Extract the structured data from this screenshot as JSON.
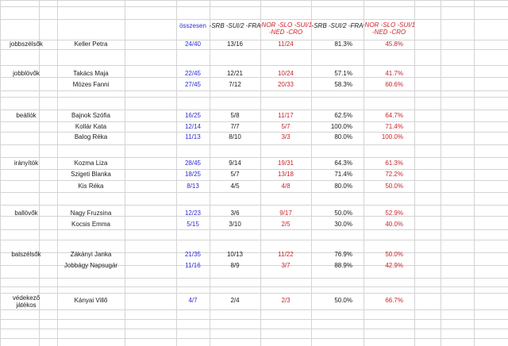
{
  "headers": {
    "total": "összesen",
    "group_a": [
      "-SRB -SUI/2 -FRA"
    ],
    "group_b": [
      "-NOR -SLO -SUI/1",
      "-NED -CRO"
    ],
    "pct_a": "-SRB -SUI/2 -FRA",
    "pct_b": [
      "-NOR -SLO -SUI/1",
      "-NED -CRO"
    ]
  },
  "positions": [
    {
      "label": [
        "jobbszélsők"
      ],
      "players": [
        {
          "name": "Keller Petra",
          "total": "24/40",
          "a": "13/16",
          "b": "11/24",
          "pa": "81.3%",
          "pb": "45.8%"
        }
      ]
    },
    {
      "label": [
        "jobblövők"
      ],
      "players": [
        {
          "name": "Takács Maja",
          "total": "22/45",
          "a": "12/21",
          "b": "10/24",
          "pa": "57.1%",
          "pb": "41.7%"
        },
        {
          "name": "Mózes Fanni",
          "total": "27/45",
          "a": "7/12",
          "b": "20/33",
          "pa": "58.3%",
          "pb": "60.6%"
        }
      ]
    },
    {
      "label": [
        "beállók"
      ],
      "players": [
        {
          "name": "Bajnok Szófia",
          "total": "16/25",
          "a": "5/8",
          "b": "11/17",
          "pa": "62.5%",
          "pb": "64.7%"
        },
        {
          "name": "Kollár Kata",
          "total": "12/14",
          "a": "7/7",
          "b": "5/7",
          "pa": "100.0%",
          "pb": "71.4%"
        },
        {
          "name": "Balog Réka",
          "total": "11/13",
          "a": "8/10",
          "b": "3/3",
          "pa": "80.0%",
          "pb": "100.0%"
        }
      ]
    },
    {
      "label": [
        "irányítók"
      ],
      "players": [
        {
          "name": "Kozma Liza",
          "total": "28/45",
          "a": "9/14",
          "b": "19/31",
          "pa": "64.3%",
          "pb": "61.3%"
        },
        {
          "name": "Szigeti Blanka",
          "total": "18/25",
          "a": "5/7",
          "b": "13/18",
          "pa": "71.4%",
          "pb": "72.2%"
        },
        {
          "name": "Kis Réka",
          "total": "8/13",
          "a": "4/5",
          "b": "4/8",
          "pa": "80.0%",
          "pb": "50.0%"
        }
      ]
    },
    {
      "label": [
        "ballövők"
      ],
      "players": [
        {
          "name": "Nagy Fruzsina",
          "total": "12/23",
          "a": "3/6",
          "b": "9/17",
          "pa": "50.0%",
          "pb": "52.9%"
        },
        {
          "name": "Kocsis Emma",
          "total": "5/15",
          "a": "3/10",
          "b": "2/5",
          "pa": "30.0%",
          "pb": "40.0%"
        }
      ]
    },
    {
      "label": [
        "balszélsők"
      ],
      "players": [
        {
          "name": "Zákányi Janka",
          "total": "21/35",
          "a": "10/13",
          "b": "11/22",
          "pa": "76.9%",
          "pb": "50.0%"
        },
        {
          "name": "Jobbágy Napsugár",
          "total": "11/16",
          "a": "8/9",
          "b": "3/7",
          "pa": "88.9%",
          "pb": "42.9%"
        }
      ]
    },
    {
      "label": [
        "védekező",
        "játékos"
      ],
      "players": [
        {
          "name": "Kányai Villő",
          "total": "4/7",
          "a": "2/4",
          "b": "2/3",
          "pa": "50.0%",
          "pb": "66.7%"
        }
      ]
    }
  ],
  "colors": {
    "grid": "#d4d4d4",
    "blue": "#2b2bd6",
    "red": "#c8242b",
    "text": "#1a1a1a"
  }
}
